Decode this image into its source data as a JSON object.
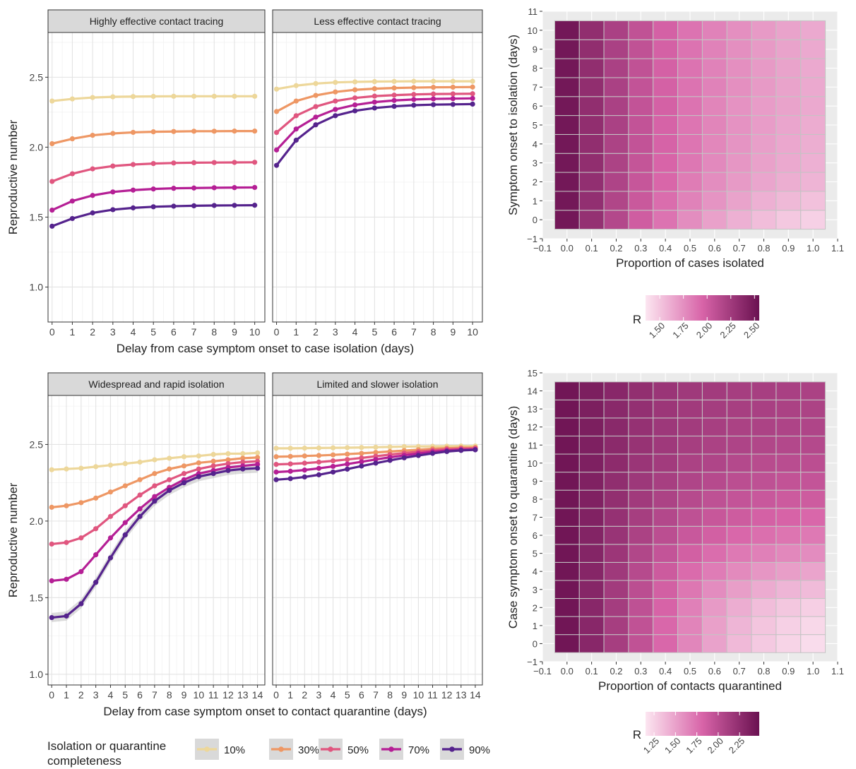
{
  "colors": {
    "10%": "#EDD79A",
    "30%": "#EE9764",
    "50%": "#E0567F",
    "70%": "#B51F95",
    "90%": "#55238D",
    "heat_low": "#FCE6F1",
    "heat_high": "#6A1151",
    "panel_bg": "#FFFFFF",
    "strip_bg": "#D9D9D9",
    "heat_bg": "#EBEBEB"
  },
  "legend": {
    "title_line1": "Isolation or quarantine",
    "title_line2": "completeness",
    "items": [
      "10%",
      "30%",
      "50%",
      "70%",
      "90%"
    ]
  },
  "chart_data": [
    {
      "type": "line",
      "title": "",
      "facets": [
        "Highly effective contact tracing",
        "Less effective contact tracing"
      ],
      "xlabel": "Delay from case symptom onset to case isolation (days)",
      "ylabel": "Reproductive number",
      "xlim": [
        -0.2,
        10.5
      ],
      "ylim": [
        0.75,
        2.82
      ],
      "xticks": [
        0,
        1,
        2,
        3,
        4,
        5,
        6,
        7,
        8,
        9,
        10
      ],
      "yticks": [
        1.0,
        1.5,
        2.0,
        2.5
      ],
      "ytick_labels": [
        "1.0",
        "1.5",
        "2.0",
        "2.5"
      ],
      "x": [
        0,
        1,
        2,
        3,
        4,
        5,
        6,
        7,
        8,
        9,
        10
      ],
      "panels": [
        {
          "facet": "Highly effective contact tracing",
          "series": [
            {
              "name": "10%",
              "values": [
                2.33,
                2.345,
                2.355,
                2.36,
                2.362,
                2.363,
                2.364,
                2.364,
                2.364,
                2.364,
                2.364
              ]
            },
            {
              "name": "30%",
              "values": [
                2.025,
                2.06,
                2.085,
                2.098,
                2.106,
                2.11,
                2.112,
                2.114,
                2.114,
                2.115,
                2.115
              ]
            },
            {
              "name": "50%",
              "values": [
                1.755,
                1.81,
                1.845,
                1.865,
                1.876,
                1.883,
                1.887,
                1.889,
                1.89,
                1.891,
                1.892
              ]
            },
            {
              "name": "70%",
              "values": [
                1.55,
                1.615,
                1.655,
                1.68,
                1.693,
                1.701,
                1.706,
                1.708,
                1.71,
                1.711,
                1.712
              ]
            },
            {
              "name": "90%",
              "values": [
                1.435,
                1.49,
                1.53,
                1.553,
                1.566,
                1.574,
                1.578,
                1.581,
                1.583,
                1.584,
                1.585
              ]
            }
          ]
        },
        {
          "facet": "Less effective contact tracing",
          "series": [
            {
              "name": "10%",
              "values": [
                2.415,
                2.44,
                2.455,
                2.463,
                2.467,
                2.469,
                2.47,
                2.471,
                2.471,
                2.471,
                2.471
              ]
            },
            {
              "name": "30%",
              "values": [
                2.255,
                2.33,
                2.37,
                2.395,
                2.41,
                2.418,
                2.423,
                2.426,
                2.428,
                2.429,
                2.43
              ]
            },
            {
              "name": "50%",
              "values": [
                2.105,
                2.225,
                2.29,
                2.33,
                2.352,
                2.365,
                2.372,
                2.377,
                2.38,
                2.381,
                2.382
              ]
            },
            {
              "name": "70%",
              "values": [
                1.98,
                2.13,
                2.215,
                2.27,
                2.302,
                2.322,
                2.334,
                2.341,
                2.345,
                2.347,
                2.349
              ]
            },
            {
              "name": "90%",
              "values": [
                1.87,
                2.05,
                2.16,
                2.225,
                2.26,
                2.28,
                2.292,
                2.3,
                2.304,
                2.306,
                2.308
              ]
            }
          ]
        }
      ]
    },
    {
      "type": "heatmap",
      "title": "",
      "xlabel": "Proportion of cases isolated",
      "ylabel": "Symptom onset to isolation (days)",
      "xlim": [
        -0.1,
        1.1
      ],
      "ylim": [
        -1,
        11
      ],
      "x": [
        0.0,
        0.1,
        0.2,
        0.3,
        0.4,
        0.5,
        0.6,
        0.7,
        0.8,
        0.9,
        1.0
      ],
      "y": [
        0,
        1,
        2,
        3,
        4,
        5,
        6,
        7,
        8,
        9,
        10
      ],
      "xtick_labels": [
        "−0.1",
        "0.0",
        "0.1",
        "0.2",
        "0.3",
        "0.4",
        "0.5",
        "0.6",
        "0.7",
        "0.8",
        "0.9",
        "1.0",
        "1.1"
      ],
      "ytick_labels": [
        "−1",
        "0",
        "1",
        "2",
        "3",
        "4",
        "5",
        "6",
        "7",
        "8",
        "9",
        "10",
        "11"
      ],
      "value_range": [
        1.35,
        2.55
      ],
      "colorbar": {
        "title": "R",
        "ticks": [
          1.5,
          1.75,
          2.0,
          2.25,
          2.5
        ],
        "tick_labels": [
          "1.50",
          "1.75",
          "2.00",
          "2.25",
          "2.50"
        ]
      },
      "values": [
        [
          2.5,
          2.32,
          2.15,
          2.0,
          1.88,
          1.76,
          1.67,
          1.6,
          1.54,
          1.49,
          1.45
        ],
        [
          2.5,
          2.33,
          2.17,
          2.03,
          1.91,
          1.81,
          1.73,
          1.66,
          1.6,
          1.56,
          1.52
        ],
        [
          2.5,
          2.33,
          2.18,
          2.05,
          1.94,
          1.84,
          1.76,
          1.7,
          1.65,
          1.61,
          1.58
        ],
        [
          2.5,
          2.34,
          2.19,
          2.06,
          1.95,
          1.86,
          1.78,
          1.72,
          1.67,
          1.63,
          1.6
        ],
        [
          2.5,
          2.34,
          2.19,
          2.07,
          1.96,
          1.87,
          1.79,
          1.73,
          1.68,
          1.64,
          1.61
        ],
        [
          2.5,
          2.34,
          2.2,
          2.07,
          1.96,
          1.87,
          1.8,
          1.74,
          1.69,
          1.65,
          1.62
        ],
        [
          2.5,
          2.34,
          2.2,
          2.07,
          1.97,
          1.88,
          1.8,
          1.74,
          1.69,
          1.66,
          1.63
        ],
        [
          2.5,
          2.34,
          2.2,
          2.07,
          1.97,
          1.88,
          1.81,
          1.75,
          1.7,
          1.66,
          1.63
        ],
        [
          2.5,
          2.34,
          2.2,
          2.08,
          1.97,
          1.88,
          1.81,
          1.75,
          1.7,
          1.66,
          1.63
        ],
        [
          2.5,
          2.34,
          2.2,
          2.08,
          1.97,
          1.88,
          1.81,
          1.75,
          1.7,
          1.66,
          1.63
        ],
        [
          2.5,
          2.34,
          2.2,
          2.08,
          1.97,
          1.88,
          1.81,
          1.75,
          1.7,
          1.66,
          1.63
        ]
      ]
    },
    {
      "type": "line",
      "title": "",
      "facets": [
        "Widespread and rapid isolation",
        "Limited and slower isolation"
      ],
      "xlabel": "Delay from case symptom onset to contact quarantine (days)",
      "ylabel": "Reproductive number",
      "xlim": [
        -0.25,
        14.5
      ],
      "ylim": [
        0.93,
        2.82
      ],
      "xticks": [
        0,
        1,
        2,
        3,
        4,
        5,
        6,
        7,
        8,
        9,
        10,
        11,
        12,
        13,
        14
      ],
      "yticks": [
        1.0,
        1.5,
        2.0,
        2.5
      ],
      "ytick_labels": [
        "1.0",
        "1.5",
        "2.0",
        "2.5"
      ],
      "x": [
        0,
        1,
        2,
        3,
        4,
        5,
        6,
        7,
        8,
        9,
        10,
        11,
        12,
        13,
        14
      ],
      "panels": [
        {
          "facet": "Widespread and rapid isolation",
          "series": [
            {
              "name": "10%",
              "values": [
                2.335,
                2.34,
                2.345,
                2.355,
                2.365,
                2.375,
                2.385,
                2.4,
                2.41,
                2.42,
                2.425,
                2.435,
                2.44,
                2.44,
                2.445
              ]
            },
            {
              "name": "30%",
              "values": [
                2.09,
                2.1,
                2.12,
                2.15,
                2.19,
                2.23,
                2.27,
                2.31,
                2.34,
                2.36,
                2.38,
                2.39,
                2.4,
                2.41,
                2.415
              ]
            },
            {
              "name": "50%",
              "values": [
                1.85,
                1.86,
                1.89,
                1.95,
                2.03,
                2.1,
                2.17,
                2.23,
                2.27,
                2.31,
                2.34,
                2.36,
                2.375,
                2.385,
                2.39
              ]
            },
            {
              "name": "70%",
              "values": [
                1.61,
                1.62,
                1.67,
                1.78,
                1.89,
                1.99,
                2.08,
                2.16,
                2.22,
                2.27,
                2.31,
                2.33,
                2.35,
                2.36,
                2.37
              ]
            },
            {
              "name": "90%",
              "values": [
                1.37,
                1.38,
                1.46,
                1.6,
                1.76,
                1.91,
                2.03,
                2.13,
                2.2,
                2.25,
                2.29,
                2.31,
                2.33,
                2.34,
                2.345
              ]
            }
          ]
        },
        {
          "facet": "Limited and slower isolation",
          "series": [
            {
              "name": "10%",
              "values": [
                2.475,
                2.475,
                2.476,
                2.477,
                2.478,
                2.479,
                2.48,
                2.482,
                2.484,
                2.486,
                2.487,
                2.488,
                2.489,
                2.49,
                2.49
              ]
            },
            {
              "name": "30%",
              "values": [
                2.42,
                2.422,
                2.425,
                2.428,
                2.432,
                2.437,
                2.442,
                2.448,
                2.454,
                2.46,
                2.466,
                2.472,
                2.476,
                2.479,
                2.48
              ]
            },
            {
              "name": "50%",
              "values": [
                2.37,
                2.373,
                2.378,
                2.385,
                2.393,
                2.402,
                2.412,
                2.423,
                2.434,
                2.444,
                2.453,
                2.462,
                2.469,
                2.473,
                2.475
              ]
            },
            {
              "name": "70%",
              "values": [
                2.32,
                2.325,
                2.333,
                2.344,
                2.357,
                2.372,
                2.387,
                2.402,
                2.416,
                2.429,
                2.441,
                2.452,
                2.461,
                2.466,
                2.468
              ]
            },
            {
              "name": "90%",
              "values": [
                2.27,
                2.277,
                2.288,
                2.302,
                2.32,
                2.339,
                2.359,
                2.378,
                2.396,
                2.413,
                2.428,
                2.442,
                2.454,
                2.461,
                2.465
              ]
            }
          ]
        }
      ]
    },
    {
      "type": "heatmap",
      "title": "",
      "xlabel": "Proportion of contacts quarantined",
      "ylabel": "Case symptom onset to quarantine (days)",
      "xlim": [
        -0.1,
        1.1
      ],
      "ylim": [
        -1,
        15
      ],
      "x": [
        0.0,
        0.1,
        0.2,
        0.3,
        0.4,
        0.5,
        0.6,
        0.7,
        0.8,
        0.9,
        1.0
      ],
      "y": [
        0,
        1,
        2,
        3,
        4,
        5,
        6,
        7,
        8,
        9,
        10,
        11,
        12,
        13,
        14
      ],
      "xtick_labels": [
        "−0.1",
        "0.0",
        "0.1",
        "0.2",
        "0.3",
        "0.4",
        "0.5",
        "0.6",
        "0.7",
        "0.8",
        "0.9",
        "1.0",
        "1.1"
      ],
      "ytick_labels": [
        "−1",
        "0",
        "1",
        "2",
        "3",
        "4",
        "5",
        "6",
        "7",
        "8",
        "9",
        "10",
        "11",
        "12",
        "13",
        "14",
        "15"
      ],
      "value_range": [
        1.15,
        2.48
      ],
      "colorbar": {
        "title": "R",
        "ticks": [
          1.25,
          1.5,
          1.75,
          2.0,
          2.25
        ],
        "tick_labels": [
          "1.25",
          "1.50",
          "1.75",
          "2.00",
          "2.25"
        ]
      },
      "values": [
        [
          2.44,
          2.3,
          2.12,
          1.96,
          1.8,
          1.64,
          1.5,
          1.38,
          1.3,
          1.24,
          1.2
        ],
        [
          2.44,
          2.3,
          2.12,
          1.96,
          1.8,
          1.65,
          1.51,
          1.4,
          1.32,
          1.26,
          1.22
        ],
        [
          2.44,
          2.3,
          2.13,
          1.97,
          1.82,
          1.67,
          1.54,
          1.44,
          1.36,
          1.31,
          1.27
        ],
        [
          2.44,
          2.31,
          2.14,
          1.99,
          1.85,
          1.72,
          1.61,
          1.52,
          1.45,
          1.4,
          1.37
        ],
        [
          2.44,
          2.31,
          2.16,
          2.02,
          1.89,
          1.78,
          1.69,
          1.62,
          1.56,
          1.52,
          1.49
        ],
        [
          2.44,
          2.32,
          2.18,
          2.05,
          1.94,
          1.85,
          1.77,
          1.71,
          1.67,
          1.63,
          1.61
        ],
        [
          2.44,
          2.33,
          2.2,
          2.09,
          1.99,
          1.91,
          1.85,
          1.8,
          1.76,
          1.73,
          1.71
        ],
        [
          2.44,
          2.34,
          2.22,
          2.12,
          2.04,
          1.97,
          1.92,
          1.88,
          1.84,
          1.82,
          1.8
        ],
        [
          2.44,
          2.35,
          2.24,
          2.15,
          2.08,
          2.02,
          1.97,
          1.94,
          1.91,
          1.89,
          1.88
        ],
        [
          2.44,
          2.35,
          2.25,
          2.17,
          2.11,
          2.06,
          2.02,
          1.99,
          1.97,
          1.95,
          1.94
        ],
        [
          2.44,
          2.36,
          2.27,
          2.19,
          2.14,
          2.09,
          2.06,
          2.03,
          2.01,
          2.0,
          1.99
        ],
        [
          2.44,
          2.36,
          2.28,
          2.21,
          2.16,
          2.12,
          2.09,
          2.07,
          2.05,
          2.04,
          2.03
        ],
        [
          2.44,
          2.37,
          2.29,
          2.22,
          2.17,
          2.14,
          2.11,
          2.09,
          2.08,
          2.07,
          2.06
        ],
        [
          2.44,
          2.37,
          2.29,
          2.23,
          2.18,
          2.15,
          2.13,
          2.11,
          2.1,
          2.09,
          2.08
        ],
        [
          2.44,
          2.37,
          2.3,
          2.24,
          2.19,
          2.16,
          2.14,
          2.12,
          2.11,
          2.1,
          2.09
        ]
      ]
    }
  ]
}
